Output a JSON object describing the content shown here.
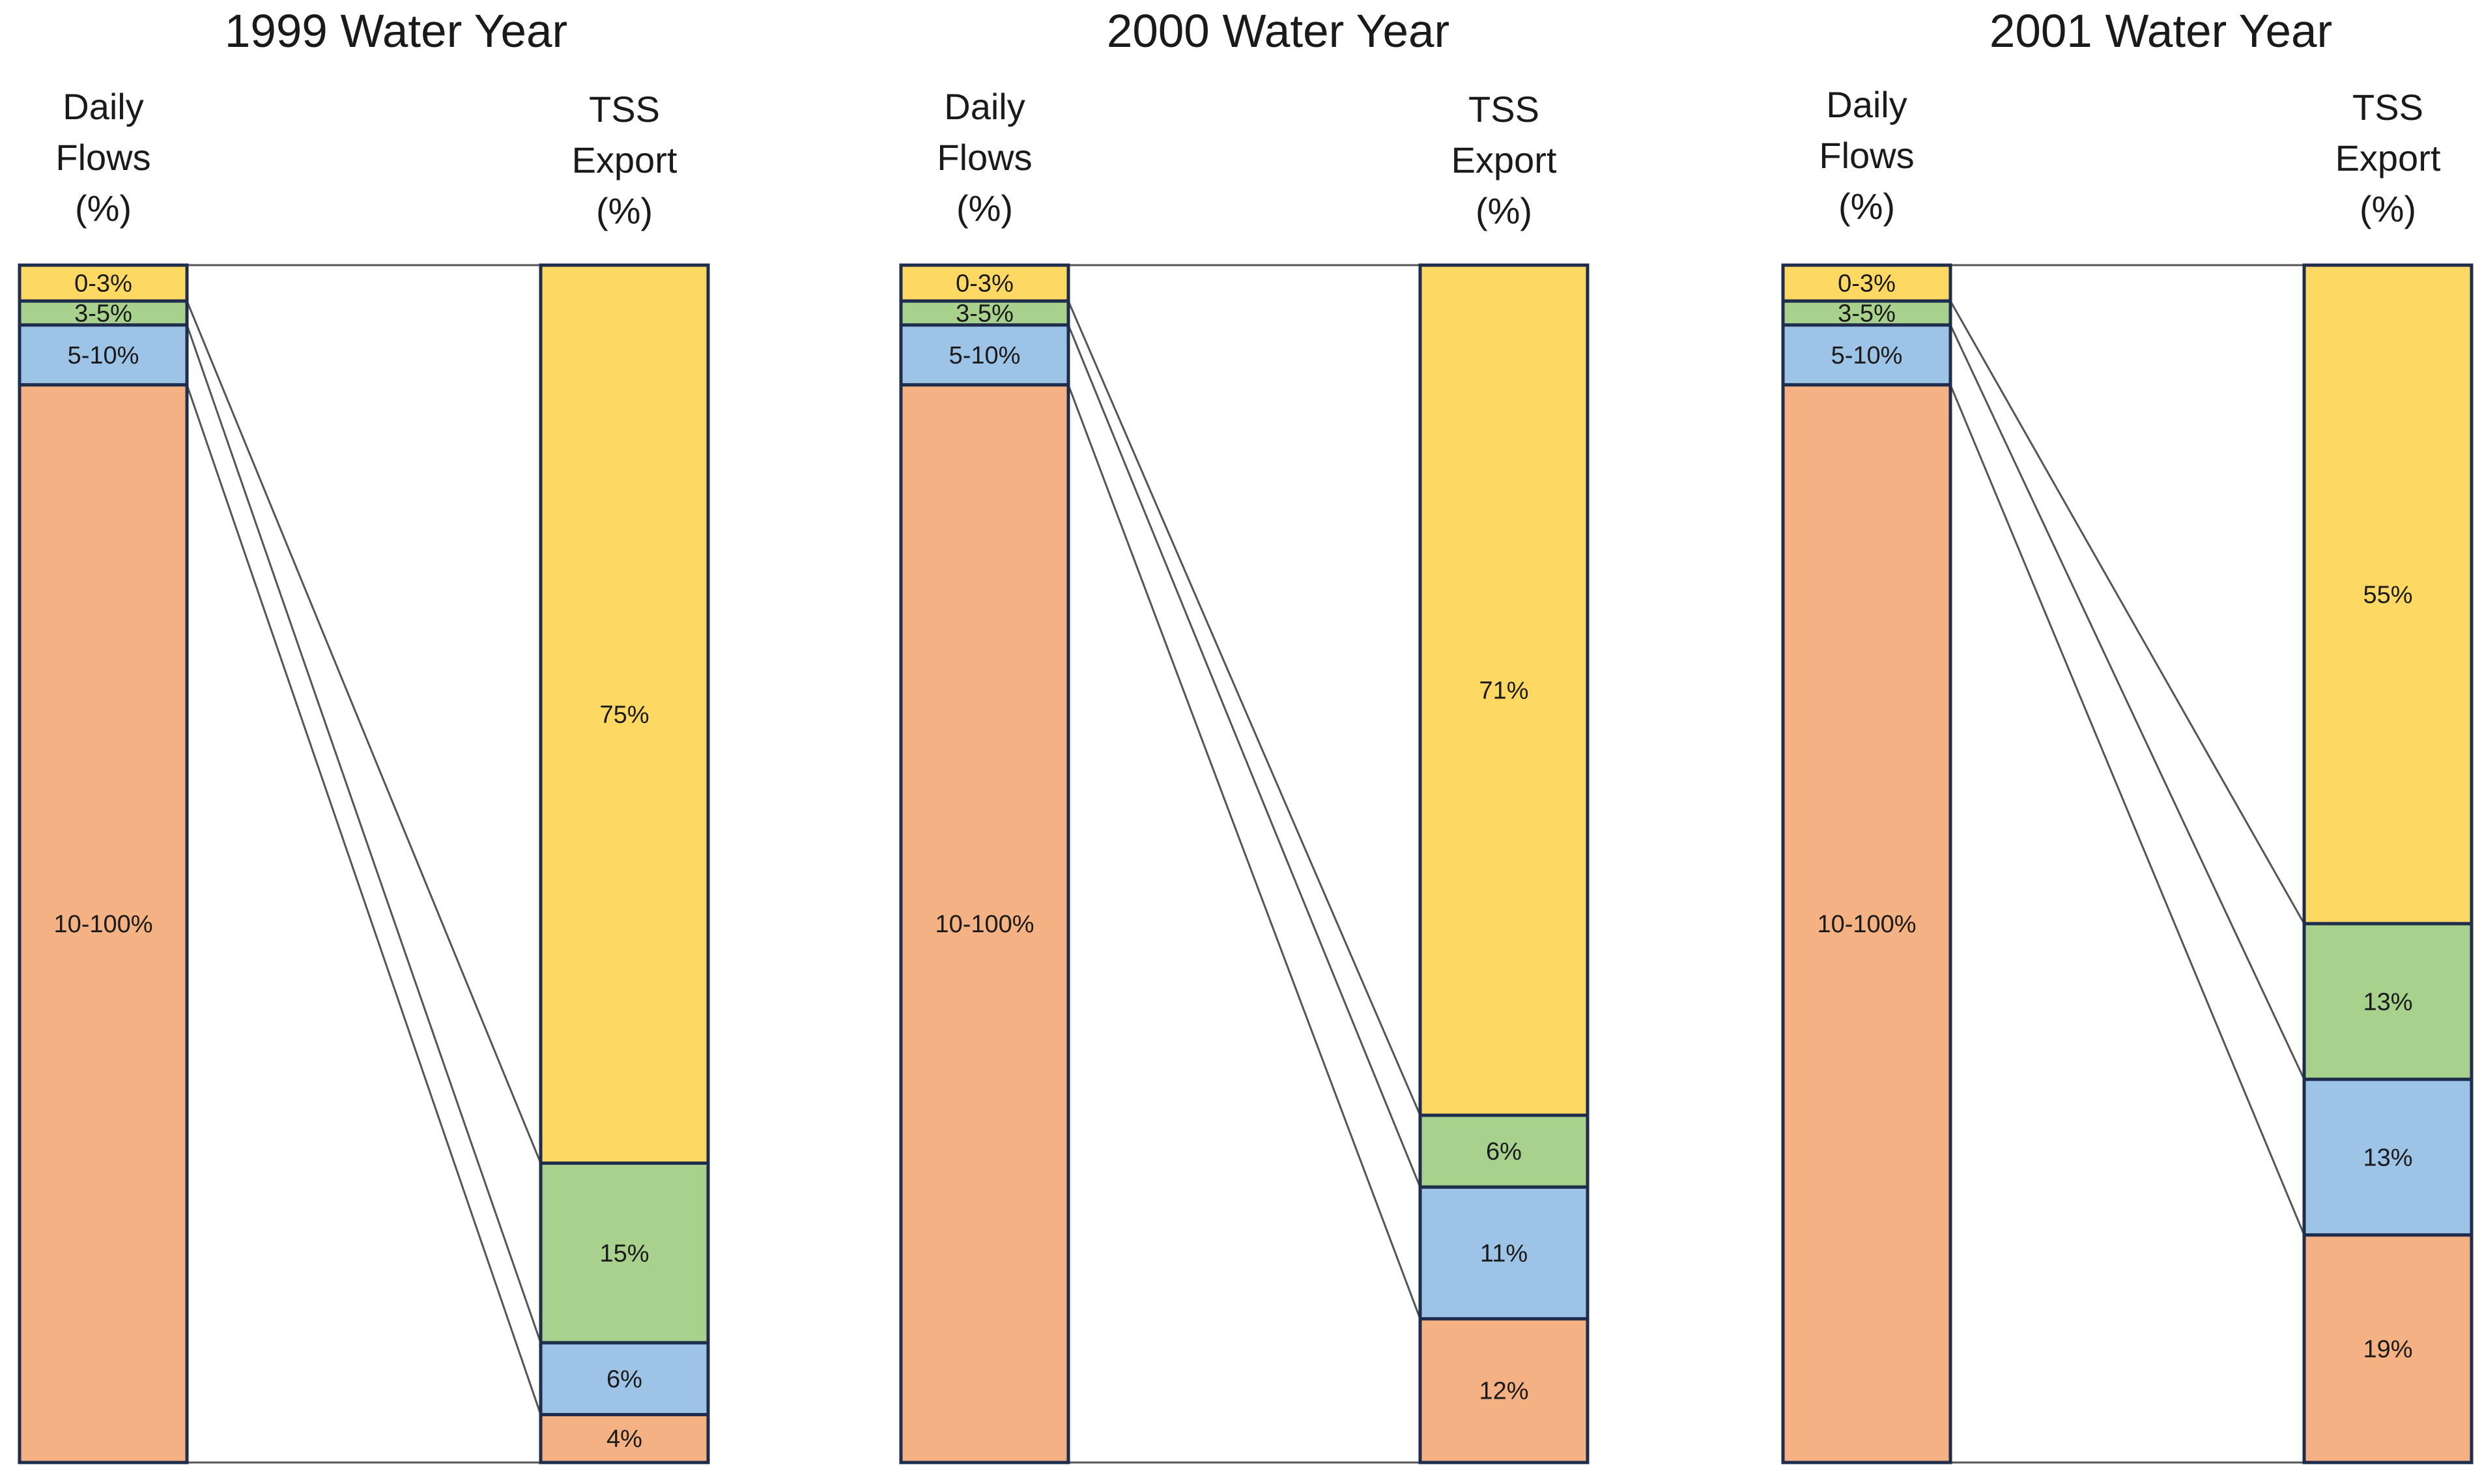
{
  "chart_data": [
    {
      "type": "stacked_bar_comparison",
      "title": "1999 Water Year",
      "left_axis_label": [
        "Daily",
        "Flows",
        "(%)"
      ],
      "right_axis_label": [
        "TSS",
        "Export",
        "(%)"
      ],
      "categories": [
        "0-3%",
        "3-5%",
        "5-10%",
        "10-100%"
      ],
      "daily_flows_pct": [
        3,
        2,
        5,
        90
      ],
      "tss_export_pct": [
        75,
        15,
        6,
        4
      ],
      "tss_labels": [
        "75%",
        "15%",
        "6%",
        "4%"
      ]
    },
    {
      "type": "stacked_bar_comparison",
      "title": "2000 Water Year",
      "left_axis_label": [
        "Daily",
        "Flows",
        "(%)"
      ],
      "right_axis_label": [
        "TSS",
        "Export",
        "(%)"
      ],
      "categories": [
        "0-3%",
        "3-5%",
        "5-10%",
        "10-100%"
      ],
      "daily_flows_pct": [
        3,
        2,
        5,
        90
      ],
      "tss_export_pct": [
        71,
        6,
        11,
        12
      ],
      "tss_labels": [
        "71%",
        "6%",
        "11%",
        "12%"
      ]
    },
    {
      "type": "stacked_bar_comparison",
      "title": "2001 Water Year",
      "left_axis_label": [
        "Daily",
        "Flows",
        "(%)"
      ],
      "right_axis_label": [
        "TSS",
        "Export",
        "(%)"
      ],
      "categories": [
        "0-3%",
        "3-5%",
        "5-10%",
        "10-100%"
      ],
      "daily_flows_pct": [
        3,
        2,
        5,
        90
      ],
      "tss_export_pct": [
        55,
        13,
        13,
        19
      ],
      "tss_labels": [
        "55%",
        "13%",
        "13%",
        "19%"
      ]
    }
  ],
  "colors": {
    "seg_0_3": "#FDD964",
    "seg_3_5": "#A9D18E",
    "seg_5_10": "#9DC3E6",
    "seg_10_100": "#F4B183",
    "bar_border": "#1F2D4D",
    "connector": "#555555"
  }
}
